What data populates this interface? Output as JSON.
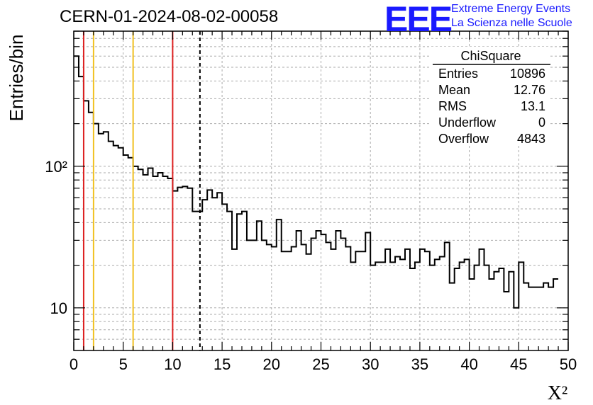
{
  "header": {
    "title": "CERN-01-2024-08-02-00058",
    "logo_text": "EEE",
    "subtitle_line1": "Extreme Energy Events",
    "subtitle_line2": "La Scienza nelle Scuole"
  },
  "stats_box": {
    "title": "ChiSquare",
    "rows": [
      {
        "label": "Entries",
        "value": "10896"
      },
      {
        "label": "Mean",
        "value": "12.76"
      },
      {
        "label": "RMS",
        "value": "13.1"
      },
      {
        "label": "Underflow",
        "value": "0"
      },
      {
        "label": "Overflow",
        "value": "4843"
      }
    ]
  },
  "colors": {
    "logo": "#1a1aff",
    "red_lines": "#dd2020",
    "yellow_lines": "#f0c020",
    "histogram": "#000000",
    "grid": "#aaaaaa"
  },
  "chart_data": {
    "type": "histogram",
    "xlabel": "X²",
    "ylabel": "Entries/bin",
    "xlim": [
      0,
      50
    ],
    "ylim": [
      5,
      900
    ],
    "yscale": "log",
    "grid": true,
    "x_ticks": [
      "0",
      "5",
      "10",
      "15",
      "20",
      "25",
      "30",
      "35",
      "40",
      "45",
      "50"
    ],
    "y_ticks": [
      {
        "value": 10,
        "label": "10"
      },
      {
        "value": 100,
        "label": "10²"
      }
    ],
    "bin_width": 0.5,
    "values": [
      600,
      430,
      290,
      240,
      200,
      170,
      175,
      150,
      140,
      135,
      120,
      115,
      100,
      95,
      87,
      97,
      85,
      90,
      85,
      82,
      67,
      71,
      72,
      70,
      48,
      48,
      58,
      68,
      60,
      65,
      54,
      48,
      26,
      46,
      48,
      30,
      30,
      41,
      30,
      28,
      27,
      42,
      25,
      25,
      27,
      35,
      28,
      24,
      31,
      35,
      33,
      29,
      26,
      35,
      31,
      27,
      21,
      25,
      25,
      34,
      20,
      21,
      21,
      26,
      21,
      23,
      22,
      26,
      19,
      21,
      26,
      25,
      20,
      22,
      23,
      29,
      15,
      19,
      21,
      22,
      16,
      20,
      26,
      20,
      16,
      18,
      19,
      13,
      18,
      10,
      21,
      15,
      14,
      14,
      14,
      15,
      14,
      16
    ],
    "vertical_lines": [
      {
        "x": 1,
        "color": "red",
        "style": "solid"
      },
      {
        "x": 2,
        "color": "yellow",
        "style": "solid"
      },
      {
        "x": 6,
        "color": "yellow",
        "style": "solid"
      },
      {
        "x": 10,
        "color": "red",
        "style": "solid"
      },
      {
        "x": 12.76,
        "color": "black",
        "style": "dashed"
      }
    ]
  }
}
